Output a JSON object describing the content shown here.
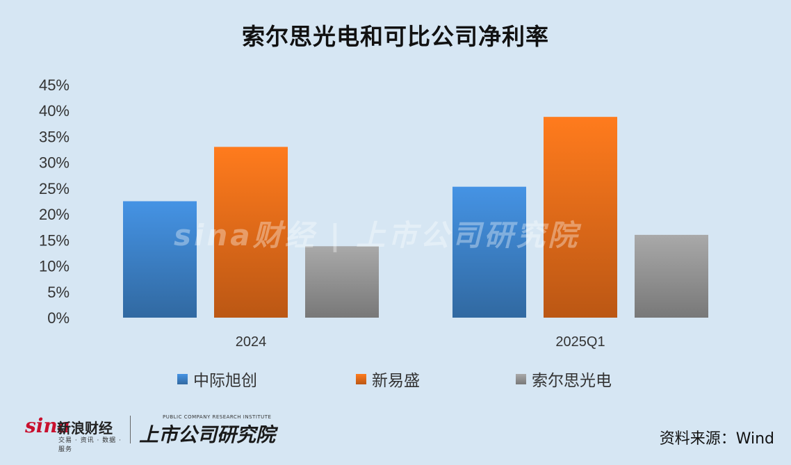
{
  "title": "索尔思光电和可比公司净利率",
  "chart_data": {
    "type": "bar",
    "title": "索尔思光电和可比公司净利率",
    "categories": [
      "2024",
      "2025Q1"
    ],
    "series": [
      {
        "name": "中际旭创",
        "values": [
          22.5,
          25.3
        ],
        "color": "#3f86cf"
      },
      {
        "name": "新易盛",
        "values": [
          33.0,
          38.8
        ],
        "color": "#f0701a"
      },
      {
        "name": "索尔思光电",
        "values": [
          13.8,
          16.0
        ],
        "color": "#9a9a9a"
      }
    ],
    "ylim": [
      0,
      45
    ],
    "yticks": [
      "0%",
      "5%",
      "10%",
      "15%",
      "20%",
      "25%",
      "30%",
      "35%",
      "40%",
      "45%"
    ],
    "ytick_values": [
      0,
      5,
      10,
      15,
      20,
      25,
      30,
      35,
      40,
      45
    ],
    "grid": false,
    "legend": "bottom"
  },
  "footer": {
    "source": "资料来源：Wind",
    "logo_sina_word": "sina",
    "logo_sina_cn": "新浪财经",
    "logo_sina_sub": "交易 · 资讯 · 数据 · 服务",
    "logo_ssgs_en": "PUBLIC COMPANY RESEARCH INSTITUTE",
    "logo_ssgs_cn": "上市公司研究院"
  },
  "watermark": "sina财经 | 上市公司研究院"
}
